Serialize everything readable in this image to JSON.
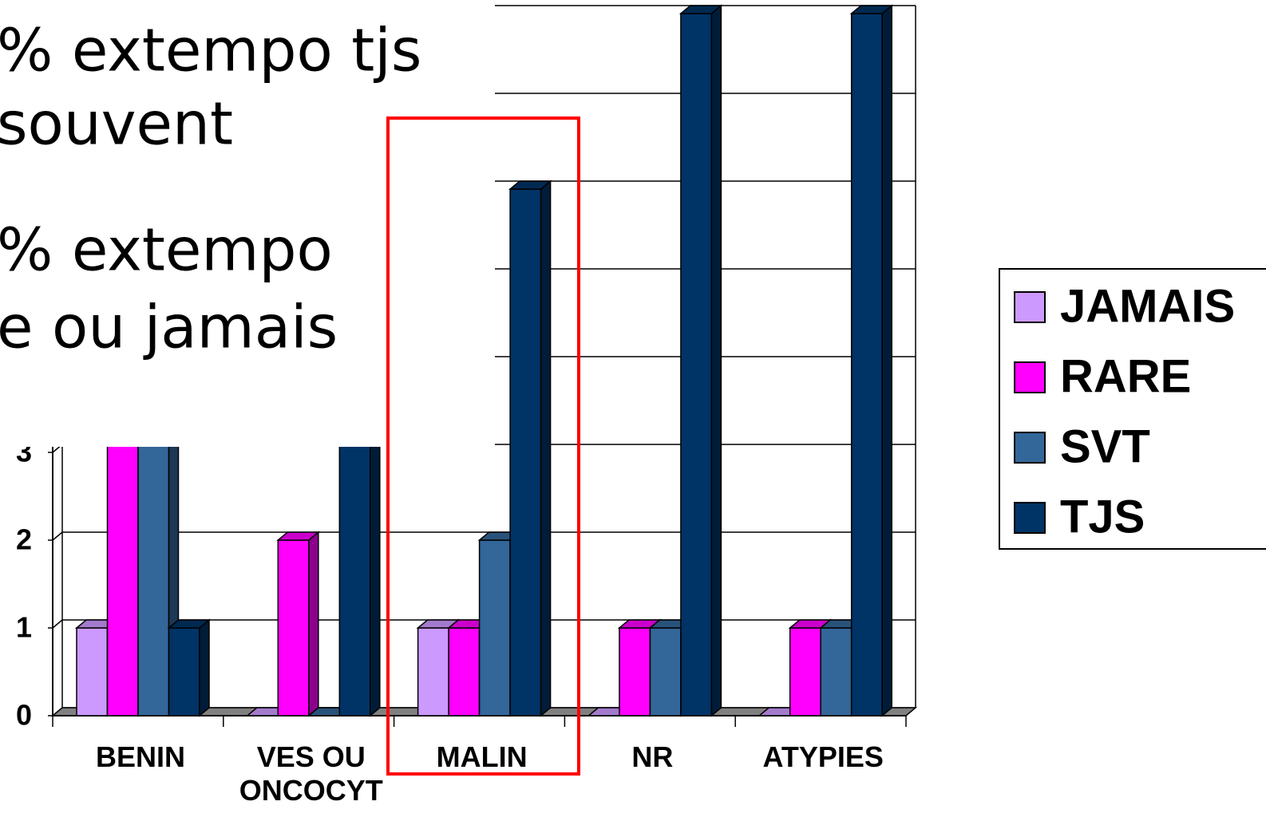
{
  "chart_data": {
    "type": "bar3d",
    "annotations": [
      "% extempo tjs",
      "souvent",
      "% extempo",
      "e ou jamais"
    ],
    "categories": [
      "BENIN",
      "VES OU ONCOCYT",
      "MALIN",
      "NR",
      "ATYPIES"
    ],
    "series": [
      {
        "name": "JAMAIS",
        "color": "#cc99ff",
        "values": [
          1,
          0,
          1,
          0,
          0
        ]
      },
      {
        "name": "RARE",
        "color": "#ff00ff",
        "values": [
          4,
          2,
          1,
          1,
          1
        ]
      },
      {
        "name": "SVT",
        "color": "#336699",
        "values": [
          4,
          0,
          2,
          1,
          1
        ]
      },
      {
        "name": "TJS",
        "color": "#003366",
        "values": [
          1,
          4,
          6,
          8,
          8
        ]
      }
    ],
    "ylim": [
      0,
      8
    ],
    "yticks": [
      0,
      1,
      2,
      3,
      4,
      5,
      6,
      7,
      8
    ],
    "grid": true,
    "legend": "right"
  }
}
